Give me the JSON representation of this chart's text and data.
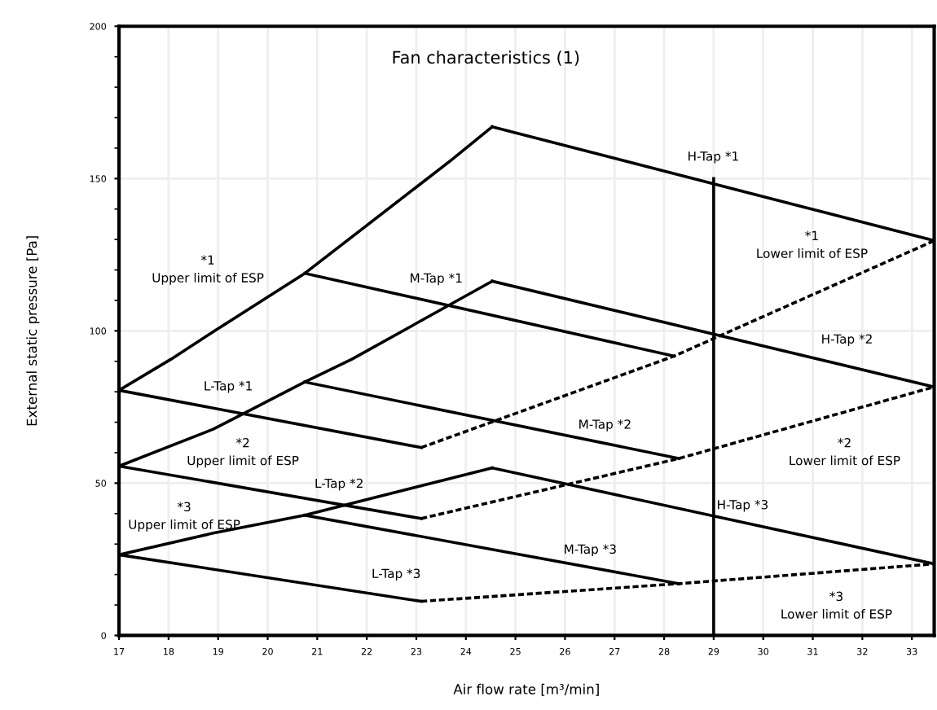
{
  "chart_data": {
    "type": "line",
    "title": "Fan characteristics (1)",
    "xlabel": "Air flow rate [m³/min]",
    "ylabel": "External static pressure [Pa]",
    "xlim": [
      17,
      33.45
    ],
    "ylim": [
      0,
      200
    ],
    "xticks": [
      17,
      18,
      19,
      20,
      21,
      22,
      23,
      24,
      25,
      26,
      27,
      28,
      29,
      30,
      31,
      32,
      33
    ],
    "yticks": [
      0,
      {
        "value": 10,
        "label": null
      },
      {
        "value": 20,
        "label": null
      },
      {
        "value": 30,
        "label": null
      },
      {
        "value": 40,
        "label": null
      },
      50,
      {
        "value": 60,
        "label": null
      },
      {
        "value": 70,
        "label": null
      },
      {
        "value": 80,
        "label": null
      },
      {
        "value": 90,
        "label": null
      },
      100,
      {
        "value": 110,
        "label": null
      },
      {
        "value": 120,
        "label": null
      },
      {
        "value": 130,
        "label": null
      },
      {
        "value": 140,
        "label": null
      },
      150,
      {
        "value": 160,
        "label": null
      },
      {
        "value": 170,
        "label": null
      },
      {
        "value": 180,
        "label": null
      },
      {
        "value": 190,
        "label": null
      },
      200
    ],
    "grid": true,
    "series": [
      {
        "color": "#000000",
        "line_style": "solid",
        "x": [
          17,
          18.05,
          18.9,
          20.75,
          23.7,
          24.53
        ],
        "values": [
          80.5,
          90.7,
          99.7,
          118.9,
          156,
          167
        ]
      },
      {
        "color": "#000000",
        "line_style": "solid",
        "x": [
          24.53,
          33.45
        ],
        "values": [
          167,
          129.6
        ]
      },
      {
        "color": "#000000",
        "line_style": "solid",
        "x": [
          20.75,
          28.2
        ],
        "values": [
          118.9,
          91.7
        ]
      },
      {
        "color": "#000000",
        "line_style": "solid",
        "x": [
          17,
          23.1
        ],
        "values": [
          80.5,
          61.7
        ]
      },
      {
        "color": "#000000",
        "line_style": "dashed",
        "x": [
          23.1,
          28.2,
          33.45
        ],
        "values": [
          61.7,
          91.7,
          129.6
        ]
      },
      {
        "color": "#000000",
        "line_style": "solid",
        "x": [
          17,
          18.9,
          20.75,
          21.7,
          24.53
        ],
        "values": [
          55.6,
          67.7,
          83.2,
          90.7,
          116.3
        ]
      },
      {
        "color": "#000000",
        "line_style": "solid",
        "x": [
          24.53,
          33.45
        ],
        "values": [
          116.3,
          81.6
        ]
      },
      {
        "color": "#000000",
        "line_style": "solid",
        "x": [
          20.75,
          28.3
        ],
        "values": [
          83.2,
          58.1
        ]
      },
      {
        "color": "#000000",
        "line_style": "solid",
        "x": [
          17,
          23.1
        ],
        "values": [
          55.6,
          38.4
        ]
      },
      {
        "color": "#000000",
        "line_style": "dashed",
        "x": [
          23.1,
          28.3,
          33.45
        ],
        "values": [
          38.4,
          58.1,
          81.6
        ]
      },
      {
        "color": "#000000",
        "line_style": "solid",
        "x": [
          17,
          18.9,
          20.75,
          24.53
        ],
        "values": [
          26.5,
          33.6,
          39.5,
          55
        ]
      },
      {
        "color": "#000000",
        "line_style": "solid",
        "x": [
          24.53,
          33.45
        ],
        "values": [
          55,
          23.5
        ]
      },
      {
        "color": "#000000",
        "line_style": "solid",
        "x": [
          20.75,
          28.3
        ],
        "values": [
          39.5,
          17
        ]
      },
      {
        "color": "#000000",
        "line_style": "solid",
        "x": [
          17,
          23.1
        ],
        "values": [
          26.5,
          11.2
        ]
      },
      {
        "color": "#000000",
        "line_style": "dashed",
        "x": [
          23.1,
          28.3,
          33.45
        ],
        "values": [
          11.2,
          17,
          23.5
        ]
      },
      {
        "color": "#000000",
        "line_style": "solid",
        "x": [
          29,
          29
        ],
        "values": [
          0,
          150
        ]
      }
    ],
    "annotations": [
      "H-Tap *1",
      "*1\nUpper limit of ESP",
      "M-Tap *1",
      "*1\nLower limit of ESP",
      "H-Tap *2",
      "L-Tap *1",
      "M-Tap *2",
      "*2\nUpper limit of ESP",
      "*2\nLower limit of ESP",
      "L-Tap *2",
      "*3\nUpper limit of ESP",
      "H-Tap *3",
      "M-Tap *3",
      "L-Tap *3",
      "*3\nLower limit of ESP"
    ]
  }
}
